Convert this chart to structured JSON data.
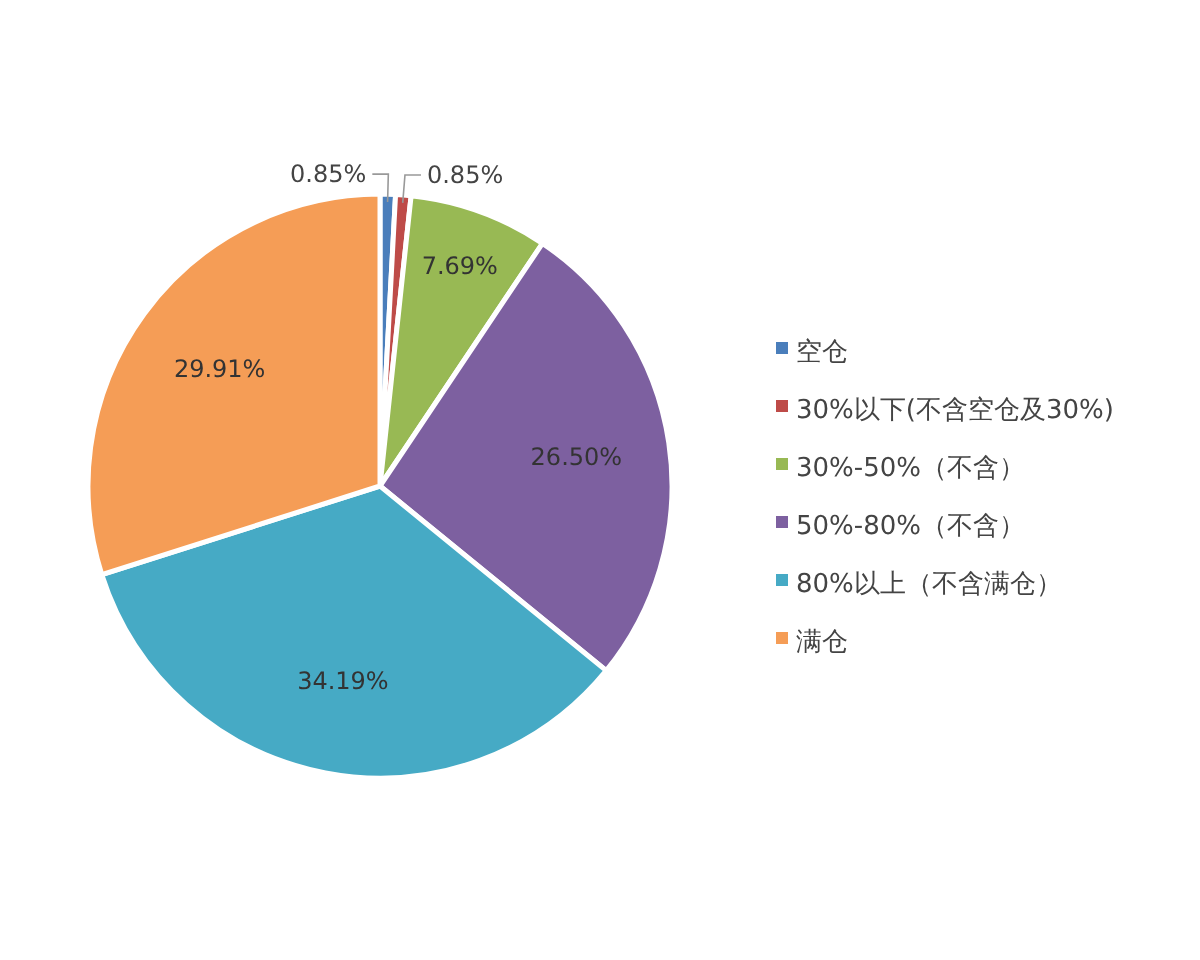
{
  "chart_data": {
    "type": "pie",
    "categories": [
      "空仓",
      "30%以下(不含空仓及30%)",
      "30%-50%（不含）",
      "50%-80%（不含）",
      "80%以上（不含满仓）",
      "满仓"
    ],
    "values": [
      0.85,
      0.85,
      7.69,
      26.5,
      34.19,
      29.91
    ],
    "value_labels": [
      "0.85%",
      "0.85%",
      "7.69%",
      "26.50%",
      "34.19%",
      "29.91%"
    ],
    "colors": [
      "#4a7ebb",
      "#be4b48",
      "#98b954",
      "#7d60a0",
      "#46aac5",
      "#f59d56"
    ],
    "legend": "right"
  }
}
